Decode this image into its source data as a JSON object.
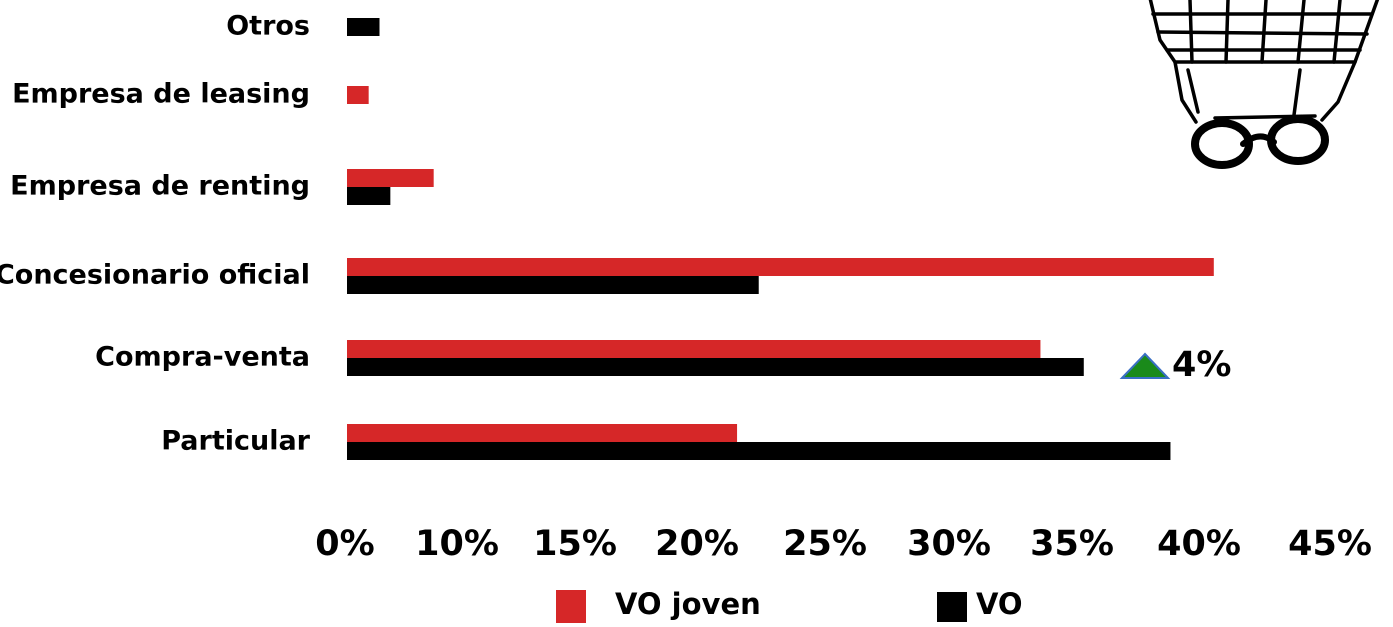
{
  "colors": {
    "vo_joven": "#d62728",
    "vo": "#000000",
    "up_arrow": "#1a8a1a",
    "up_arrow_stroke": "#3a6fc4"
  },
  "icons": {
    "cart": "shopping-cart-icon"
  },
  "chart_data": {
    "type": "bar",
    "orientation": "horizontal",
    "categories": [
      "Otros",
      "Empresa de leasing",
      "Empresa de renting",
      "Concesionario oficial",
      "Compra-venta",
      "Particular"
    ],
    "series": [
      {
        "name": "VO joven",
        "values": [
          null,
          1,
          4,
          40,
          32,
          18
        ]
      },
      {
        "name": "VO",
        "values": [
          1.5,
          null,
          2,
          19,
          34,
          38
        ]
      }
    ],
    "x_tick_labels": [
      "0%",
      "10%",
      "15%",
      "20%",
      "25%",
      "30%",
      "35%",
      "40%",
      "45%"
    ],
    "xlim": [
      0,
      46
    ],
    "grid": false,
    "legend_position": "bottom",
    "annotations": [
      {
        "category": "Compra-venta",
        "icon": "up-triangle-icon",
        "text": "4%"
      }
    ]
  }
}
